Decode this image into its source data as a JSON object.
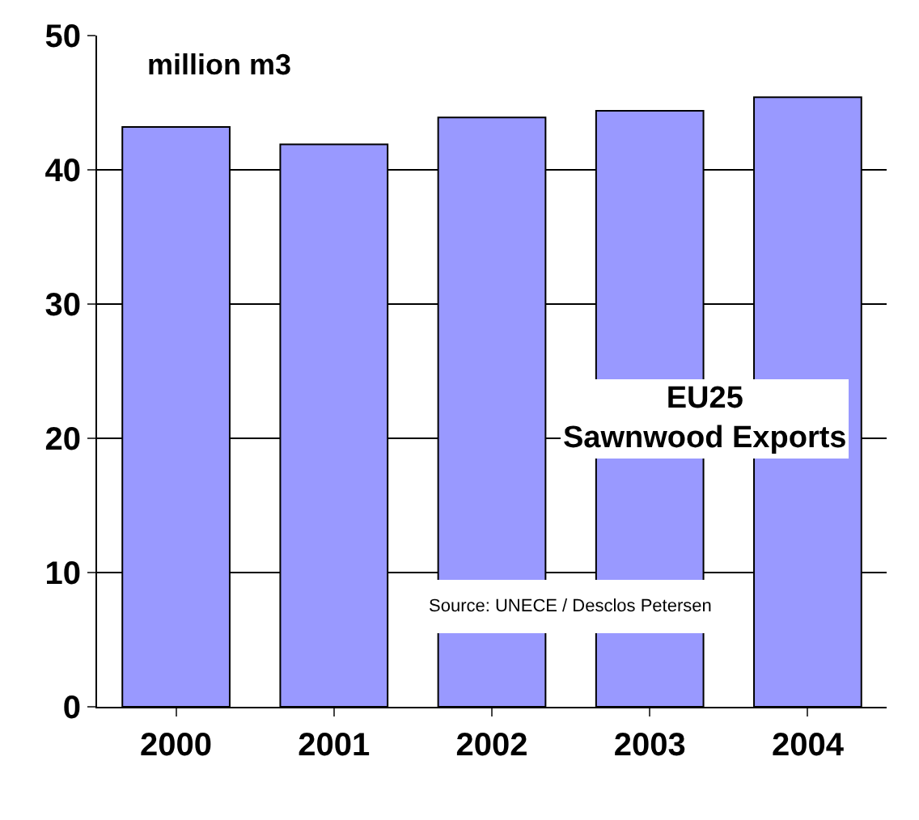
{
  "chart_data": {
    "type": "bar",
    "title": "EU25\nSawnwood Exports",
    "ylabel": "million m3",
    "categories": [
      "2000",
      "2001",
      "2002",
      "2003",
      "2004"
    ],
    "values": [
      43.2,
      41.9,
      43.9,
      44.4,
      45.4
    ],
    "color": "#9999ff",
    "ylim": [
      0,
      50
    ],
    "yticks": [
      0,
      10,
      20,
      30,
      40,
      50
    ],
    "grid": "y",
    "annotations": [
      "Source: UNECE / Desclos Petersen"
    ]
  }
}
